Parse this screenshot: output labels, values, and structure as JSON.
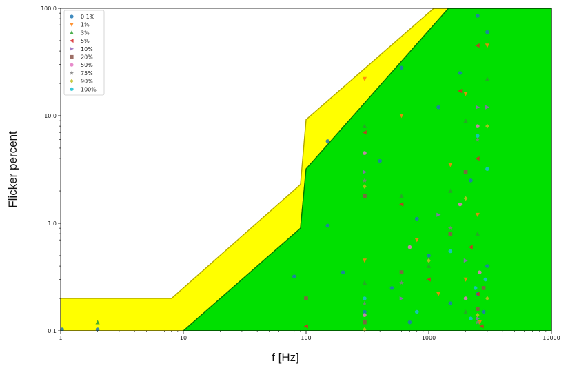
{
  "chart_data": {
    "type": "scatter",
    "title": "",
    "xlabel": "f [Hz]",
    "ylabel": "Flicker percent",
    "xscale": "log",
    "yscale": "log",
    "xlim": [
      1,
      10000
    ],
    "ylim": [
      0.1,
      100
    ],
    "x_tick_labels": [
      "1",
      "10",
      "100",
      "1000",
      "10000"
    ],
    "y_tick_labels": [
      "0.1",
      "1.0",
      "10.0",
      "100.0"
    ],
    "grid": false,
    "legend_position": "top-left",
    "regions": [
      {
        "name": "yellow band",
        "color": "#ffff00",
        "upper_boundary": [
          [
            1,
            0.2
          ],
          [
            8,
            0.2
          ],
          [
            90,
            2.3
          ],
          [
            100,
            9.2
          ],
          [
            1100,
            100
          ]
        ],
        "lower_boundary": [
          [
            1,
            0.1
          ],
          [
            10,
            0.1
          ],
          [
            90,
            0.9
          ],
          [
            100,
            3.2
          ],
          [
            1450,
            100
          ]
        ]
      },
      {
        "name": "green region",
        "color": "#00e000",
        "upper_boundary": [
          [
            10,
            0.1
          ],
          [
            90,
            0.9
          ],
          [
            100,
            3.2
          ],
          [
            1450,
            100
          ],
          [
            10000,
            100
          ]
        ],
        "lower_boundary": [
          [
            10,
            0.1
          ],
          [
            10000,
            0.1
          ]
        ]
      }
    ],
    "series": [
      {
        "name": "0.1%",
        "color": "#1f77b4",
        "marker": "circle",
        "points": [
          [
            150,
            5.8
          ],
          [
            600,
            28
          ],
          [
            2500,
            85
          ],
          [
            3000,
            60
          ],
          [
            400,
            3.8
          ],
          [
            800,
            1.1
          ],
          [
            1200,
            12
          ],
          [
            1800,
            25
          ],
          [
            2200,
            2.5
          ],
          [
            80,
            0.32
          ],
          [
            200,
            0.35
          ],
          [
            500,
            0.25
          ],
          [
            1000,
            0.5
          ],
          [
            2500,
            0.22
          ],
          [
            3000,
            0.4
          ],
          [
            300,
            0.15
          ],
          [
            700,
            0.12
          ],
          [
            1500,
            0.18
          ],
          [
            2800,
            0.15
          ],
          [
            150,
            0.95
          ],
          [
            2,
            0.1
          ],
          [
            1,
            0.1
          ]
        ]
      },
      {
        "name": "1%",
        "color": "#ff7f0e",
        "marker": "triangle-down",
        "points": [
          [
            300,
            22
          ],
          [
            600,
            10
          ],
          [
            2000,
            16
          ],
          [
            3000,
            45
          ],
          [
            1500,
            3.5
          ],
          [
            2500,
            1.2
          ],
          [
            800,
            0.7
          ],
          [
            2000,
            0.3
          ],
          [
            300,
            0.45
          ],
          [
            1200,
            0.22
          ],
          [
            2600,
            0.12
          ]
        ]
      },
      {
        "name": "3%",
        "color": "#2ca02c",
        "marker": "triangle-up",
        "points": [
          [
            2,
            0.12
          ],
          [
            300,
            8
          ],
          [
            3000,
            22
          ],
          [
            2000,
            9
          ],
          [
            1500,
            2
          ],
          [
            600,
            1.8
          ],
          [
            2500,
            0.8
          ],
          [
            1000,
            0.4
          ],
          [
            300,
            0.28
          ],
          [
            2000,
            0.15
          ]
        ]
      },
      {
        "name": "5%",
        "color": "#d62728",
        "marker": "triangle-left",
        "points": [
          [
            300,
            7
          ],
          [
            2500,
            45
          ],
          [
            1800,
            17
          ],
          [
            2500,
            4
          ],
          [
            600,
            1.5
          ],
          [
            2200,
            0.6
          ],
          [
            1000,
            0.3
          ],
          [
            2500,
            0.22
          ],
          [
            100,
            0.11
          ],
          [
            2700,
            0.11
          ]
        ]
      },
      {
        "name": "10%",
        "color": "#9467bd",
        "marker": "triangle-right",
        "points": [
          [
            300,
            3
          ],
          [
            2500,
            12
          ],
          [
            3000,
            12
          ],
          [
            1200,
            1.2
          ],
          [
            2000,
            0.45
          ],
          [
            600,
            0.2
          ],
          [
            2500,
            0.13
          ]
        ]
      },
      {
        "name": "20%",
        "color": "#8c564b",
        "marker": "square",
        "points": [
          [
            300,
            1.8
          ],
          [
            2000,
            3
          ],
          [
            1500,
            0.8
          ],
          [
            600,
            0.35
          ],
          [
            2500,
            0.16
          ],
          [
            300,
            0.12
          ],
          [
            100,
            0.2
          ],
          [
            2800,
            0.25
          ]
        ]
      },
      {
        "name": "50%",
        "color": "#e377c2",
        "marker": "circle",
        "points": [
          [
            300,
            4.5
          ],
          [
            2500,
            8
          ],
          [
            1800,
            1.5
          ],
          [
            700,
            0.6
          ],
          [
            2000,
            0.2
          ],
          [
            300,
            0.14
          ],
          [
            2600,
            0.35
          ]
        ]
      },
      {
        "name": "75%",
        "color": "#7f7f7f",
        "marker": "star",
        "points": [
          [
            300,
            2.5
          ],
          [
            2500,
            6
          ],
          [
            1500,
            0.9
          ],
          [
            600,
            0.28
          ],
          [
            2500,
            0.12
          ],
          [
            300,
            0.18
          ]
        ]
      },
      {
        "name": "90%",
        "color": "#bcbd22",
        "marker": "diamond",
        "points": [
          [
            300,
            2.2
          ],
          [
            3000,
            8
          ],
          [
            2000,
            1.7
          ],
          [
            1000,
            0.45
          ],
          [
            2500,
            0.14
          ],
          [
            300,
            0.1
          ],
          [
            3000,
            0.2
          ]
        ]
      },
      {
        "name": "100%",
        "color": "#17becf",
        "marker": "circle",
        "points": [
          [
            2500,
            6.5
          ],
          [
            3000,
            3.2
          ],
          [
            1500,
            0.55
          ],
          [
            2400,
            0.25
          ],
          [
            300,
            0.2
          ],
          [
            2200,
            0.13
          ],
          [
            800,
            0.15
          ],
          [
            2900,
            0.3
          ]
        ]
      }
    ]
  }
}
